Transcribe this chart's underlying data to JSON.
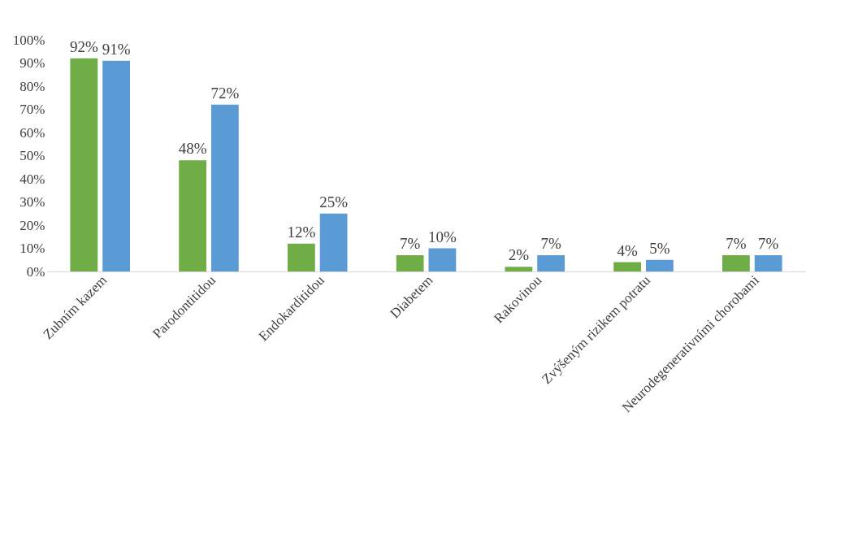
{
  "chart_data": {
    "type": "bar",
    "categories": [
      "Zubním kazem",
      "Parodontitidou",
      "Endokarditidou",
      "Diabetem",
      "Rakovinou",
      "Zvýšeným rizikem potratu",
      "Neurodegenerativními chorobami"
    ],
    "series": [
      {
        "color": "#70ad47",
        "values": [
          92,
          48,
          12,
          7,
          2,
          4,
          7
        ],
        "value_labels": [
          "92%",
          "48%",
          "12%",
          "7%",
          "2%",
          "4%",
          "7%"
        ]
      },
      {
        "color": "#5b9bd5",
        "values": [
          91,
          72,
          25,
          10,
          7,
          5,
          7
        ],
        "value_labels": [
          "91%",
          "72%",
          "25%",
          "10%",
          "7%",
          "5%",
          "7%"
        ]
      }
    ],
    "ylim": [
      0,
      100
    ],
    "yticks": [
      {
        "value": 0,
        "label": "0%"
      },
      {
        "value": 10,
        "label": "10%"
      },
      {
        "value": 20,
        "label": "20%"
      },
      {
        "value": 30,
        "label": "30%"
      },
      {
        "value": 40,
        "label": "40%"
      },
      {
        "value": 50,
        "label": "50%"
      },
      {
        "value": 60,
        "label": "60%"
      },
      {
        "value": 70,
        "label": "70%"
      },
      {
        "value": 80,
        "label": "80%"
      },
      {
        "value": 90,
        "label": "90%"
      },
      {
        "value": 100,
        "label": "100%"
      }
    ],
    "grid": false,
    "legend": false
  }
}
